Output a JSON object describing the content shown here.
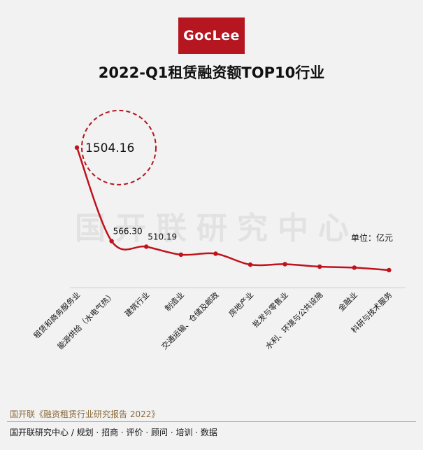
{
  "logo_text": "GocLee",
  "watermark": "国开联研究中心",
  "unit_label": "单位：亿元",
  "footer": {
    "source": "国开联《融资租赁行业研究报告 2022》",
    "org": "国开联研究中心   /   规划 · 招商 · 评价 · 顾问 · 培训 · 数据"
  },
  "colors": {
    "brand": "#b5161f",
    "line": "#c0121c",
    "background": "#f2f2f2"
  },
  "chart_data": {
    "type": "line",
    "title": "2022-Q1租赁融资额TOP10行业",
    "categories": [
      "租赁和商务服务业",
      "能源供给（水电气热）",
      "建筑行业",
      "制造业",
      "交通运输、仓储及邮政",
      "房地产业",
      "批发与零售业",
      "水利、环境与公共设施",
      "金融业",
      "科研与技术服务"
    ],
    "values": [
      1504.16,
      566.3,
      510.19,
      430,
      440,
      330,
      335,
      310,
      300,
      275
    ],
    "data_labels": [
      "1504.16",
      "566.30",
      "510.19",
      "",
      "",
      "",
      "",
      "",
      "",
      ""
    ],
    "ylim": [
      0,
      1600
    ],
    "grid": false,
    "legend": "none",
    "highlight": "租赁和商务服务业"
  }
}
